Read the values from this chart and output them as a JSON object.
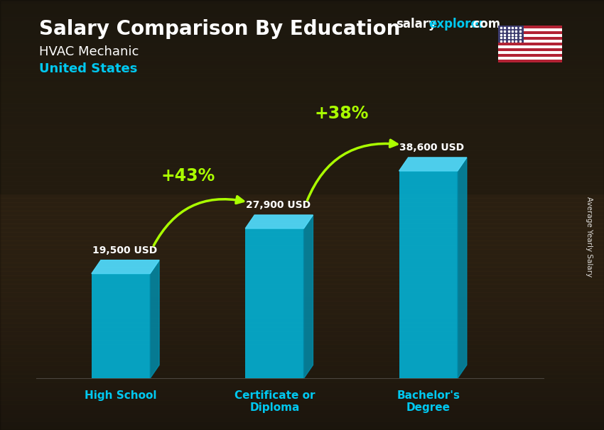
{
  "title": "Salary Comparison By Education",
  "subtitle_job": "HVAC Mechanic",
  "subtitle_country": "United States",
  "categories": [
    "High School",
    "Certificate or\nDiploma",
    "Bachelor's\nDegree"
  ],
  "values": [
    19500,
    27900,
    38600
  ],
  "value_labels": [
    "19,500 USD",
    "27,900 USD",
    "38,600 USD"
  ],
  "pct_labels": [
    "+43%",
    "+38%"
  ],
  "bar_color_face": "#00c0e8",
  "bar_color_side": "#0090b0",
  "bar_color_top": "#50d8f8",
  "bar_width": 0.38,
  "bar_alpha": 0.82,
  "title_color": "#ffffff",
  "subtitle_job_color": "#ffffff",
  "subtitle_country_color": "#00c8f0",
  "value_label_color": "#ffffff",
  "category_label_color": "#00c8f0",
  "pct_color": "#aaff00",
  "arrow_color": "#aaff00",
  "watermark_salary": "salary",
  "watermark_explorer": "explorer",
  "watermark_com": ".com",
  "watermark_color_salary": "#ffffff",
  "watermark_color_explorer": "#00c8f0",
  "watermark_color_com": "#ffffff",
  "right_label": "Average Yearly Salary",
  "ylim_max": 48000,
  "bg_color": "#3a2e22"
}
